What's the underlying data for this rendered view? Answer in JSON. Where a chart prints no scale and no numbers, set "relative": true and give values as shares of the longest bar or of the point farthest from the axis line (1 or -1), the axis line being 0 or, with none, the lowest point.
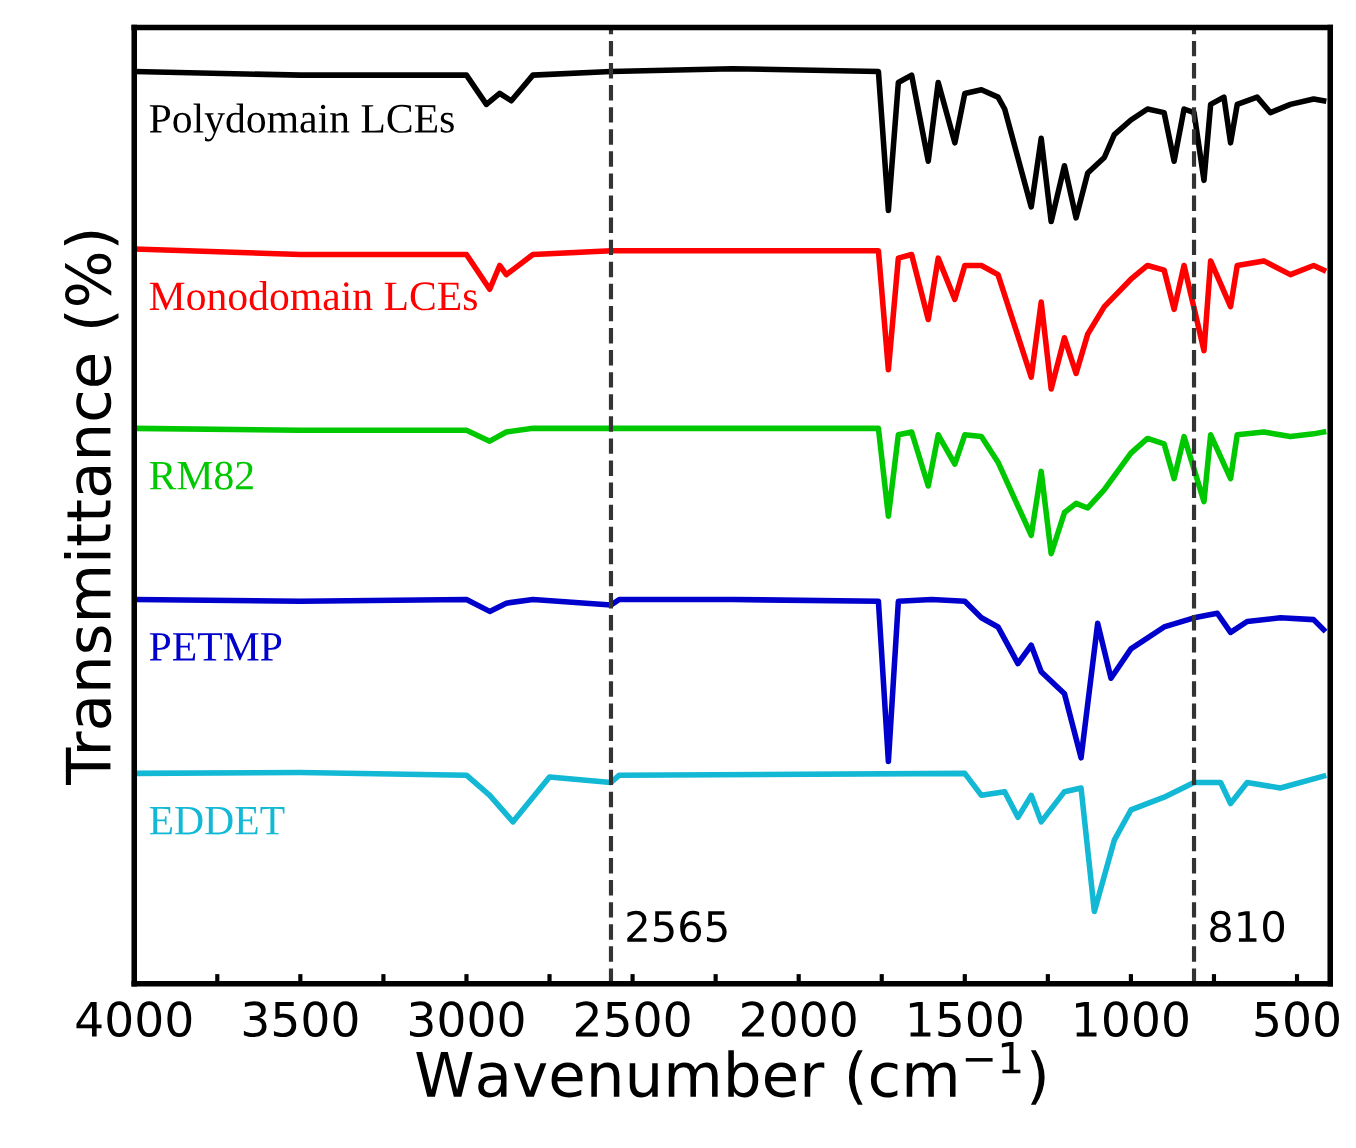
{
  "chart_data": {
    "type": "line",
    "relative": true,
    "xlabel": "Wavenumber (cm$^{−1}$)",
    "ylabel": "Transmittance (%)",
    "xlim": [
      4000,
      400
    ],
    "xticks": [
      4000,
      {
        "value": 3750,
        "label": null
      },
      3500,
      {
        "value": 3250,
        "label": null
      },
      3000,
      {
        "value": 2750,
        "label": null
      },
      2500,
      {
        "value": 2250,
        "label": null
      },
      2000,
      {
        "value": 1750,
        "label": null
      },
      1500,
      {
        "value": 1250,
        "label": null
      },
      1000,
      {
        "value": 750,
        "label": null
      },
      500
    ],
    "grid": false,
    "legend": false,
    "line_style": "solid",
    "marker": "none",
    "ref_lines": [
      {
        "axis": "x",
        "value": 2565,
        "label": "2565",
        "color": "#333333",
        "line_style": "dashed"
      },
      {
        "axis": "x",
        "value": 810,
        "label": "810",
        "color": "#333333",
        "line_style": "dashed"
      }
    ],
    "series": [
      {
        "name": "Polydomain LCEs",
        "color": "#000000",
        "x": [
          4000,
          3500,
          3000,
          2940,
          2900,
          2865,
          2800,
          2565,
          2200,
          1760,
          1730,
          1700,
          1660,
          1610,
          1580,
          1530,
          1500,
          1450,
          1400,
          1380,
          1300,
          1270,
          1240,
          1200,
          1165,
          1130,
          1080,
          1050,
          1000,
          950,
          900,
          870,
          840,
          810,
          780,
          760,
          720,
          700,
          680,
          620,
          580,
          520,
          450,
          420
        ],
        "values": [
          0.997,
          0.993,
          0.993,
          0.961,
          0.973,
          0.965,
          0.993,
          0.997,
          1.0,
          0.997,
          0.845,
          0.985,
          0.993,
          0.899,
          0.985,
          0.919,
          0.973,
          0.977,
          0.969,
          0.956,
          0.849,
          0.924,
          0.833,
          0.894,
          0.837,
          0.886,
          0.903,
          0.928,
          0.944,
          0.956,
          0.952,
          0.899,
          0.956,
          0.952,
          0.878,
          0.961,
          0.969,
          0.919,
          0.961,
          0.969,
          0.952,
          0.961,
          0.967,
          0.965
        ]
      },
      {
        "name": "Monodomain LCEs",
        "color": "#ff0000",
        "x": [
          4000,
          3500,
          3000,
          2930,
          2900,
          2880,
          2800,
          2565,
          1760,
          1730,
          1700,
          1660,
          1610,
          1580,
          1530,
          1500,
          1450,
          1400,
          1300,
          1270,
          1240,
          1200,
          1165,
          1130,
          1080,
          1000,
          950,
          900,
          870,
          840,
          780,
          760,
          700,
          680,
          600,
          520,
          450,
          420
        ],
        "values": [
          0.803,
          0.797,
          0.797,
          0.759,
          0.785,
          0.775,
          0.797,
          0.801,
          0.801,
          0.671,
          0.793,
          0.797,
          0.726,
          0.793,
          0.748,
          0.785,
          0.785,
          0.775,
          0.663,
          0.745,
          0.65,
          0.706,
          0.667,
          0.71,
          0.74,
          0.77,
          0.785,
          0.78,
          0.737,
          0.785,
          0.692,
          0.79,
          0.74,
          0.785,
          0.79,
          0.775,
          0.785,
          0.78
        ]
      },
      {
        "name": "RM82",
        "color": "#00c800",
        "x": [
          4000,
          3500,
          3000,
          2930,
          2880,
          2800,
          2565,
          1760,
          1730,
          1700,
          1660,
          1610,
          1580,
          1530,
          1500,
          1450,
          1400,
          1300,
          1270,
          1240,
          1200,
          1165,
          1130,
          1080,
          1000,
          950,
          900,
          870,
          840,
          780,
          760,
          700,
          680,
          600,
          520,
          450,
          420
        ],
        "values": [
          0.607,
          0.605,
          0.605,
          0.593,
          0.603,
          0.607,
          0.607,
          0.607,
          0.511,
          0.6,
          0.603,
          0.544,
          0.6,
          0.568,
          0.6,
          0.598,
          0.57,
          0.49,
          0.56,
          0.47,
          0.515,
          0.525,
          0.52,
          0.54,
          0.58,
          0.596,
          0.59,
          0.552,
          0.598,
          0.527,
          0.6,
          0.552,
          0.6,
          0.603,
          0.598,
          0.601,
          0.603
        ]
      },
      {
        "name": "PETMP",
        "color": "#0000cc",
        "x": [
          4000,
          3500,
          3000,
          2930,
          2880,
          2800,
          2565,
          2540,
          2200,
          1760,
          1730,
          1700,
          1600,
          1500,
          1450,
          1400,
          1340,
          1300,
          1270,
          1200,
          1150,
          1100,
          1060,
          1000,
          900,
          810,
          740,
          700,
          650,
          550,
          450,
          420
        ],
        "values": [
          0.42,
          0.418,
          0.42,
          0.407,
          0.416,
          0.42,
          0.414,
          0.42,
          0.42,
          0.418,
          0.243,
          0.418,
          0.42,
          0.418,
          0.4,
          0.39,
          0.35,
          0.37,
          0.341,
          0.317,
          0.247,
          0.394,
          0.334,
          0.366,
          0.39,
          0.4,
          0.405,
          0.384,
          0.396,
          0.4,
          0.398,
          0.387
        ]
      },
      {
        "name": "EDDET",
        "color": "#12b8d4",
        "x": [
          4000,
          3500,
          3000,
          2930,
          2860,
          2750,
          2565,
          2540,
          1500,
          1450,
          1380,
          1340,
          1300,
          1270,
          1200,
          1150,
          1110,
          1050,
          1000,
          900,
          810,
          730,
          700,
          650,
          550,
          420
        ],
        "values": [
          0.23,
          0.231,
          0.228,
          0.206,
          0.177,
          0.226,
          0.22,
          0.228,
          0.23,
          0.206,
          0.21,
          0.182,
          0.206,
          0.177,
          0.21,
          0.214,
          0.079,
          0.157,
          0.19,
          0.204,
          0.22,
          0.22,
          0.197,
          0.22,
          0.214,
          0.227
        ]
      }
    ]
  }
}
